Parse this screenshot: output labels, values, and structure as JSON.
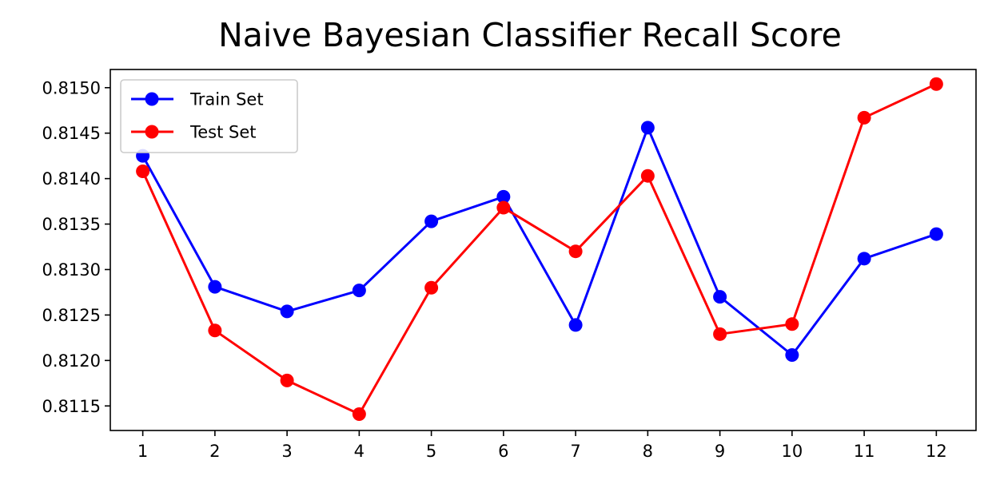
{
  "chart_data": {
    "type": "line",
    "title": "Naive Bayesian Classifier Recall Score",
    "xlabel": "",
    "ylabel": "",
    "x": [
      1,
      2,
      3,
      4,
      5,
      6,
      7,
      8,
      9,
      10,
      11,
      12
    ],
    "xticks": [
      "1",
      "2",
      "3",
      "4",
      "5",
      "6",
      "7",
      "8",
      "9",
      "10",
      "11",
      "12"
    ],
    "xlim": [
      0.55,
      12.55
    ],
    "yticks": [
      "0.8115",
      "0.8120",
      "0.8125",
      "0.8130",
      "0.8135",
      "0.8140",
      "0.8145",
      "0.8150"
    ],
    "ylim": [
      0.81123,
      0.8152
    ],
    "grid": false,
    "legend_position": "upper-left",
    "series": [
      {
        "name": "Train Set",
        "color": "#0000ff",
        "marker": "circle",
        "values": [
          0.81425,
          0.81281,
          0.81254,
          0.81277,
          0.81353,
          0.8138,
          0.81239,
          0.81456,
          0.8127,
          0.81206,
          0.81312,
          0.81339
        ]
      },
      {
        "name": "Test Set",
        "color": "#ff0000",
        "marker": "circle",
        "values": [
          0.81408,
          0.81233,
          0.81178,
          0.81141,
          0.8128,
          0.81368,
          0.8132,
          0.81403,
          0.81229,
          0.8124,
          0.81467,
          0.81504
        ]
      }
    ]
  }
}
